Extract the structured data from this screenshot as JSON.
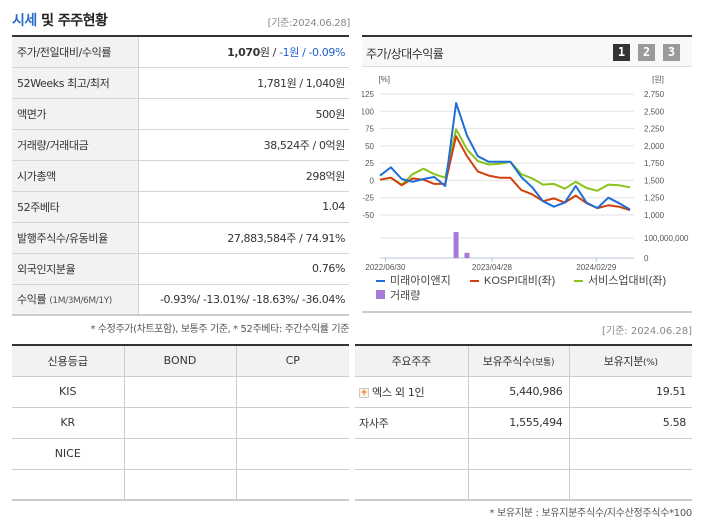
{
  "header": {
    "title_accent": "시세",
    "title_rest": " 및 주주현황",
    "base_date": "[기준:2024.06.28]"
  },
  "price_table": {
    "rows": [
      {
        "label": "주가/전일대비/수익률",
        "value_bold": "1,070",
        "value_unit": "원 / ",
        "value_blue": "-1원 / -0.09%"
      },
      {
        "label": "52Weeks 최고/최저",
        "value": "1,781원 / 1,040원"
      },
      {
        "label": "액면가",
        "value": "500원"
      },
      {
        "label": "거래량/거래대금",
        "value": "38,524주 / 0억원"
      },
      {
        "label": "시가총액",
        "value": "298억원"
      },
      {
        "label": "52주베타",
        "value": "1.04"
      },
      {
        "label": "발행주식수/유동비율",
        "value": "27,883,584주 / 74.91%"
      },
      {
        "label": "외국인지분율",
        "value": "0.76%"
      },
      {
        "label": "수익률",
        "label_small": "(1M/3M/6M/1Y)",
        "value": "-0.93%/ -13.01%/ -18.63%/ -36.04%"
      }
    ],
    "note": "* 수정주가(차트포함), 보통주 기준, * 52주베타: 주간수익률 기준"
  },
  "chart_panel": {
    "title": "주가/상대수익률",
    "tabs": [
      "1",
      "2",
      "3"
    ],
    "active_tab": 0
  },
  "chart_data": {
    "type": "line",
    "title": "주가/상대수익률",
    "left_axis_label": "[%]",
    "right_axis_label": "[원]",
    "left_ticks": [
      125,
      100,
      75,
      50,
      25,
      0,
      -25,
      -50
    ],
    "right_ticks": [
      "2,750",
      "2,500",
      "2,250",
      "2,000",
      "1,750",
      "1,500",
      "1,250",
      "1,000"
    ],
    "volume_ticks": [
      "100,000,000",
      "0"
    ],
    "x_tick_labels": [
      "2022/06/30",
      "2023/04/28",
      "2024/02/29"
    ],
    "ylim_left": [
      -50,
      125
    ],
    "series": [
      {
        "name": "미래아이앤지",
        "color": "#1f6fd6",
        "values": [
          7,
          19,
          2,
          -2,
          2,
          5,
          -8,
          112,
          65,
          35,
          27,
          27,
          27,
          5,
          -10,
          -30,
          -38,
          -32,
          -8,
          -32,
          -40,
          -25,
          -33,
          -42
        ]
      },
      {
        "name": "KOSPI대비(좌)",
        "color": "#d2400c",
        "values": [
          1,
          4,
          -7,
          3,
          1,
          -5,
          -5,
          64,
          35,
          13,
          7,
          4,
          4,
          -14,
          -20,
          -30,
          -26,
          -32,
          -22,
          -33,
          -40,
          -36,
          -38,
          -43
        ]
      },
      {
        "name": "서비스업대비(좌)",
        "color": "#8ac21a",
        "values": [
          1,
          4,
          -6,
          9,
          17,
          9,
          4,
          74,
          45,
          28,
          23,
          24,
          27,
          9,
          3,
          -6,
          -5,
          -12,
          -2,
          -11,
          -15,
          -6,
          -7,
          -10
        ]
      }
    ],
    "volume": {
      "name": "거래량",
      "color": "#a87ad6",
      "bars": [
        {
          "index": 7,
          "value": 100000000
        },
        {
          "index": 8,
          "value": 20000000
        }
      ]
    },
    "legend": [
      "미래아이앤지",
      "KOSPI대비(좌)",
      "서비스업대비(좌)",
      "거래량"
    ]
  },
  "right_date": "[기준: 2024.06.28]",
  "credit_table": {
    "headers": [
      "신용등급",
      "BOND",
      "CP"
    ],
    "rows": [
      [
        "KIS",
        "",
        ""
      ],
      [
        "KR",
        "",
        ""
      ],
      [
        "NICE",
        "",
        ""
      ],
      [
        "",
        "",
        ""
      ]
    ]
  },
  "holder_table": {
    "headers": [
      "주요주주",
      "보유주식수",
      "(보통)",
      "보유지분",
      "(%)"
    ],
    "rows": [
      {
        "name": "엑스 외 1인",
        "shares": "5,440,986",
        "pct": "19.51",
        "expandable": true
      },
      {
        "name": "자사주",
        "shares": "1,555,494",
        "pct": "5.58",
        "expandable": false
      },
      {
        "name": "",
        "shares": "",
        "pct": ""
      },
      {
        "name": "",
        "shares": "",
        "pct": ""
      }
    ],
    "note": "* 보유지분 : 보유지분주식수/지수산정주식수*100"
  }
}
